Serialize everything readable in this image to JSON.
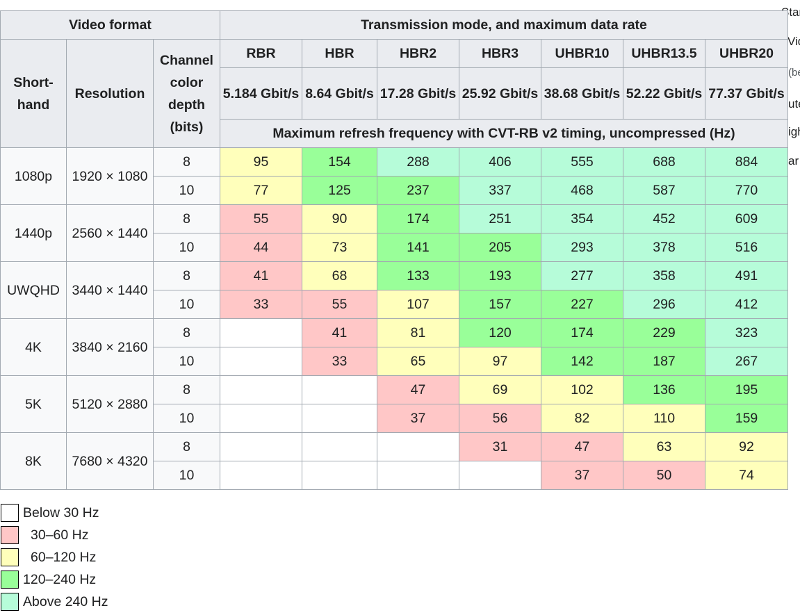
{
  "table": {
    "header_video_format": "Video format",
    "header_transmission": "Transmission mode, and maximum data rate",
    "header_shorthand": "Short-hand",
    "header_resolution": "Resolution",
    "header_depth": "Channel color depth (bits)",
    "header_refresh": "Maximum refresh frequency with CVT-RB v2 timing, uncompressed (Hz)",
    "modes": [
      {
        "name": "RBR",
        "rate": "5.184 Gbit/s"
      },
      {
        "name": "HBR",
        "rate": "8.64 Gbit/s"
      },
      {
        "name": "HBR2",
        "rate": "17.28 Gbit/s"
      },
      {
        "name": "HBR3",
        "rate": "25.92 Gbit/s"
      },
      {
        "name": "UHBR10",
        "rate": "38.68 Gbit/s"
      },
      {
        "name": "UHBR13.5",
        "rate": "52.22 Gbit/s"
      },
      {
        "name": "UHBR20",
        "rate": "77.37 Gbit/s"
      }
    ],
    "formats": [
      {
        "shorthand": "1080p",
        "resolution": "1920 × 1080",
        "rows": [
          {
            "depth": "8",
            "values": [
              "95",
              "154",
              "288",
              "406",
              "555",
              "688",
              "884"
            ]
          },
          {
            "depth": "10",
            "values": [
              "77",
              "125",
              "237",
              "337",
              "468",
              "587",
              "770"
            ]
          }
        ]
      },
      {
        "shorthand": "1440p",
        "resolution": "2560 × 1440",
        "rows": [
          {
            "depth": "8",
            "values": [
              "55",
              "90",
              "174",
              "251",
              "354",
              "452",
              "609"
            ]
          },
          {
            "depth": "10",
            "values": [
              "44",
              "73",
              "141",
              "205",
              "293",
              "378",
              "516"
            ]
          }
        ]
      },
      {
        "shorthand": "UWQHD",
        "resolution": "3440 × 1440",
        "rows": [
          {
            "depth": "8",
            "values": [
              "41",
              "68",
              "133",
              "193",
              "277",
              "358",
              "491"
            ]
          },
          {
            "depth": "10",
            "values": [
              "33",
              "55",
              "107",
              "157",
              "227",
              "296",
              "412"
            ]
          }
        ]
      },
      {
        "shorthand": "4K",
        "resolution": "3840 × 2160",
        "rows": [
          {
            "depth": "8",
            "values": [
              "",
              "41",
              "81",
              "120",
              "174",
              "229",
              "323"
            ]
          },
          {
            "depth": "10",
            "values": [
              "",
              "33",
              "65",
              "97",
              "142",
              "187",
              "267"
            ]
          }
        ]
      },
      {
        "shorthand": "5K",
        "resolution": "5120 × 2880",
        "rows": [
          {
            "depth": "8",
            "values": [
              "",
              "",
              "47",
              "69",
              "102",
              "136",
              "195"
            ]
          },
          {
            "depth": "10",
            "values": [
              "",
              "",
              "37",
              "56",
              "82",
              "110",
              "159"
            ]
          }
        ]
      },
      {
        "shorthand": "8K",
        "resolution": "7680 × 4320",
        "rows": [
          {
            "depth": "8",
            "values": [
              "",
              "",
              "",
              "31",
              "47",
              "63",
              "92"
            ]
          },
          {
            "depth": "10",
            "values": [
              "",
              "",
              "",
              "",
              "37",
              "50",
              "74"
            ]
          }
        ]
      }
    ]
  },
  "legend": [
    {
      "label": "Below 30 Hz",
      "color": "#ffffff"
    },
    {
      "label": "30–60 Hz",
      "color": "#ffc7c7"
    },
    {
      "label": "60–120 Hz",
      "color": "#ffffbb"
    },
    {
      "label": "120–240 Hz",
      "color": "#99ff99"
    },
    {
      "label": "Above 240 Hz",
      "color": "#b6fcd9"
    }
  ],
  "edge_text": [
    "Star",
    "Vid",
    "(be",
    "ute",
    "igh",
    "ar"
  ]
}
